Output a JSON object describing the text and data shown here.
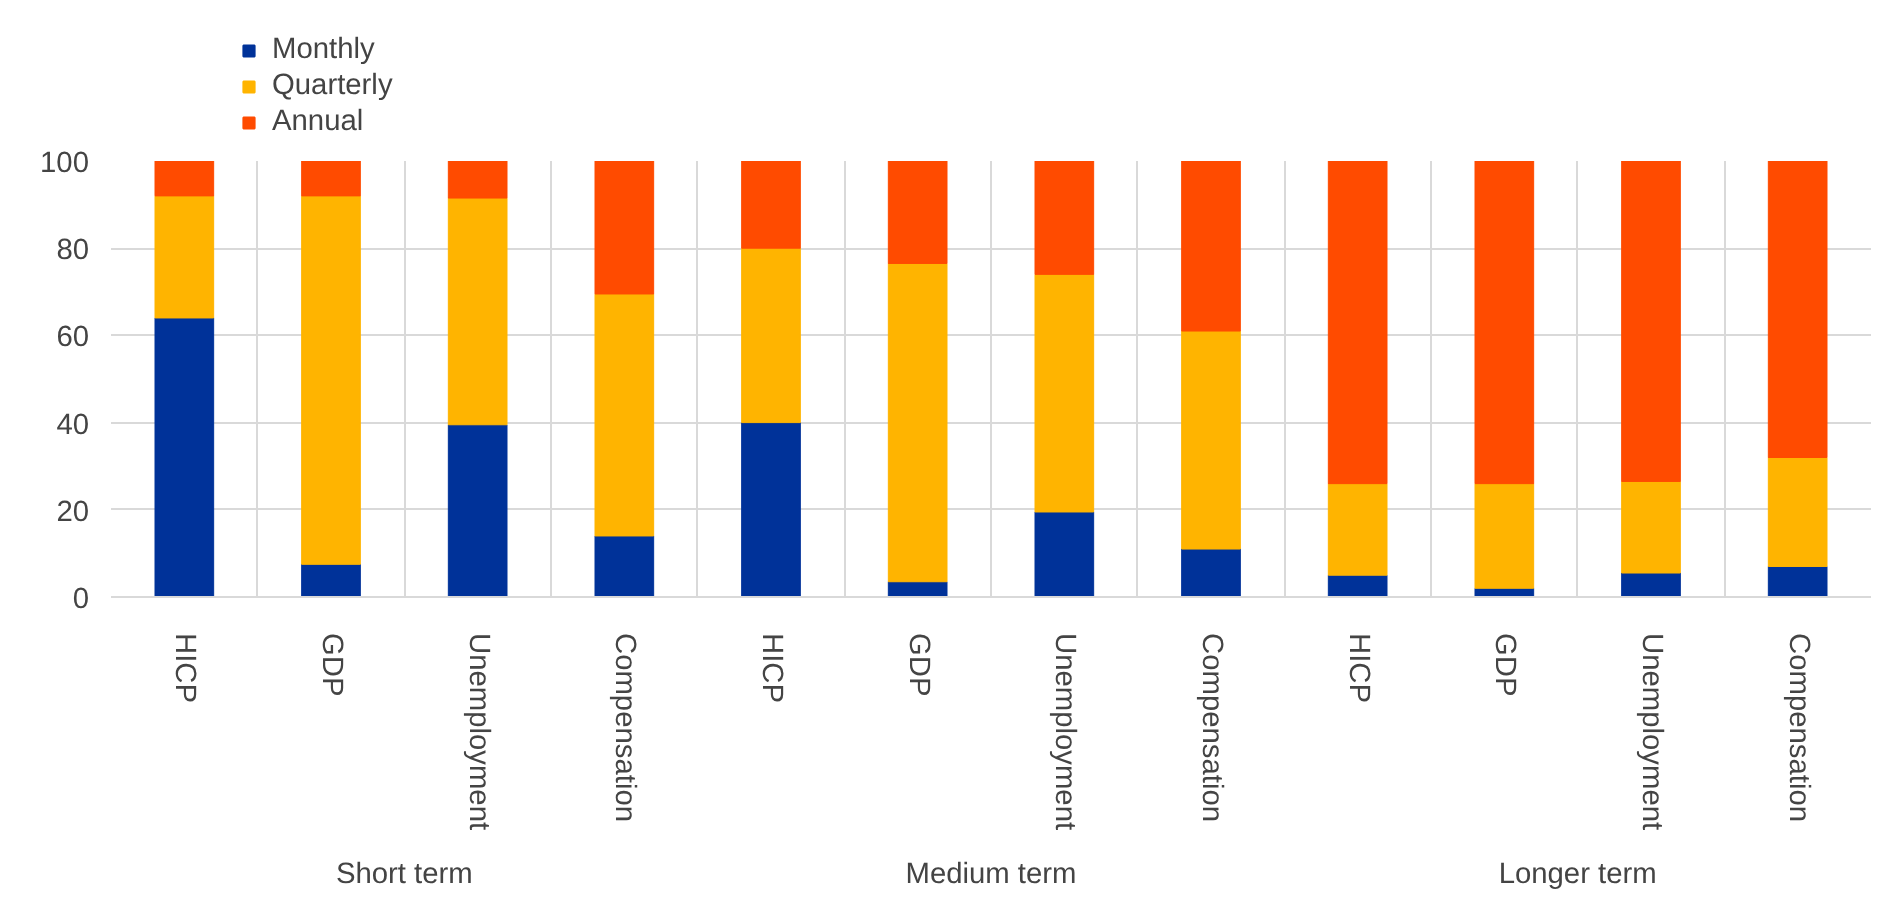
{
  "chart_data": {
    "type": "bar",
    "stacked": true,
    "categories": [
      "HICP",
      "GDP",
      "Unemployment",
      "Compensation",
      "HICP",
      "GDP",
      "Unemployment",
      "Compensation",
      "HICP",
      "GDP",
      "Unemployment",
      "Compensation"
    ],
    "series": [
      {
        "name": "Monthly",
        "color": "#003299",
        "values": [
          64,
          7.5,
          39.5,
          14,
          40,
          3.5,
          19.5,
          11,
          5,
          2,
          5.5,
          7
        ]
      },
      {
        "name": "Quarterly",
        "color": "#ffb400",
        "values": [
          28,
          84.5,
          52,
          55.5,
          40,
          73,
          54.5,
          50,
          21,
          24,
          21,
          25
        ]
      },
      {
        "name": "Annual",
        "color": "#ff4b00",
        "values": [
          8,
          8,
          8.5,
          30.5,
          20,
          23.5,
          26,
          39,
          74,
          74,
          73.5,
          68
        ]
      }
    ],
    "annotations": [
      "Short term",
      "Medium term",
      "Longer term"
    ],
    "ylim": [
      0,
      100
    ],
    "yticks": [
      0,
      20,
      40,
      60,
      80,
      100
    ],
    "grid": true,
    "legend": "top left"
  }
}
